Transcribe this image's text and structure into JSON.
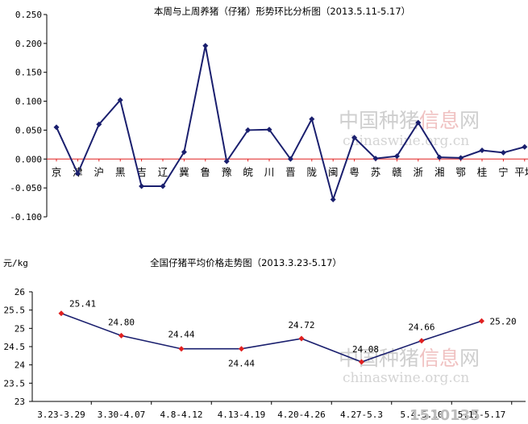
{
  "chart_data": [
    {
      "type": "line",
      "title": "本周与上周养猪（仔猪）形势环比分析图（2013.5.11-5.17）",
      "categories": [
        "京",
        "津",
        "沪",
        "黑",
        "吉",
        "辽",
        "冀",
        "鲁",
        "豫",
        "皖",
        "川",
        "晋",
        "陇",
        "闽",
        "粤",
        "苏",
        "赣",
        "浙",
        "湘",
        "鄂",
        "桂",
        "宁",
        "平均"
      ],
      "values": [
        0.055,
        -0.025,
        0.06,
        0.102,
        -0.047,
        -0.047,
        0.012,
        0.196,
        -0.004,
        0.05,
        0.051,
        0.0,
        0.069,
        -0.07,
        0.037,
        0.001,
        0.005,
        0.063,
        0.003,
        0.002,
        0.015,
        0.011,
        0.021
      ],
      "ylim": [
        -0.1,
        0.25
      ],
      "yticks": [
        "0.250",
        "0.200",
        "0.150",
        "0.100",
        "0.050",
        "0.000",
        "-0.050",
        "-0.100"
      ],
      "colors": {
        "line": "#1a1f6e",
        "zero": "#e02020"
      }
    },
    {
      "type": "line",
      "title": "全国仔猪平均价格走势图（2013.3.23-5.17）",
      "ylabel": "元/kg",
      "categories": [
        "3.23-3.29",
        "3.30-4.07",
        "4.8-4.12",
        "4.13-4.19",
        "4.20-4.26",
        "4.27-5.3",
        "5.4-5.10",
        "5.11-5.17"
      ],
      "values": [
        25.41,
        24.8,
        24.44,
        24.44,
        24.72,
        24.08,
        24.66,
        25.2
      ],
      "data_labels": [
        "25.41",
        "24.80",
        "24.44",
        "24.44",
        "24.72",
        "24.08",
        "24.66",
        "25.20"
      ],
      "ylim": [
        23,
        26
      ],
      "yticks": [
        "26",
        "25.5",
        "25",
        "24.5",
        "24",
        "23.5",
        "23"
      ],
      "colors": {
        "line": "#1a1f6e",
        "marker": "#e02020"
      }
    }
  ],
  "watermark": {
    "cn_gray": "中国种猪",
    "cn_red": "信息",
    "cn_gray2": "网",
    "url": "chinaswine.org.cn"
  },
  "brand_logo": "1510135"
}
